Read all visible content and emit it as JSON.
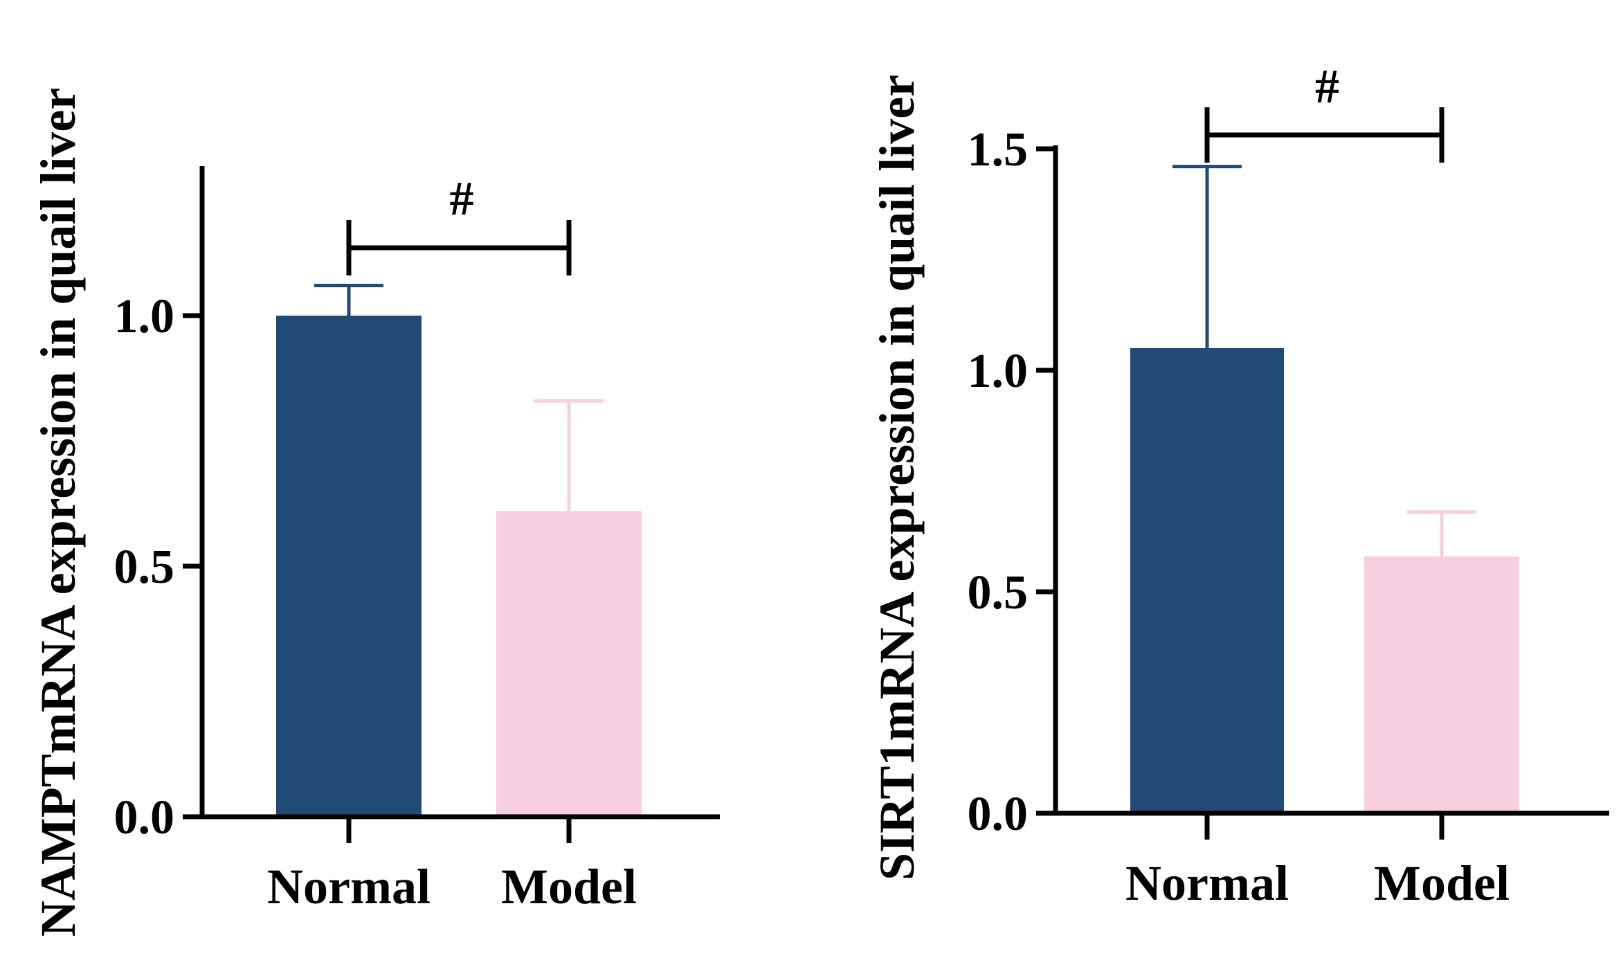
{
  "colors": {
    "normal": "#224A76",
    "model": "#F7CFE0",
    "axis": "#000000"
  },
  "chart_data": [
    {
      "type": "bar",
      "categories": [
        "Normal",
        "Model"
      ],
      "values": [
        1.0,
        0.61
      ],
      "errors": [
        0.06,
        0.22
      ],
      "ylabel": "NAMPTmRNA expression in quail liver",
      "ylim": [
        0,
        1.3
      ],
      "yticks": [
        0.0,
        0.5,
        1.0
      ],
      "tick_labels": [
        "0.0",
        "0.5",
        "1.0"
      ],
      "significance": {
        "symbol": "#",
        "between": [
          "Normal",
          "Model"
        ]
      },
      "error_direction": "up"
    },
    {
      "type": "bar",
      "categories": [
        "Normal",
        "Model"
      ],
      "values": [
        1.05,
        0.58
      ],
      "errors": [
        0.41,
        0.1
      ],
      "ylabel": "SIRT1mRNA expression in quail liver",
      "ylim": [
        0,
        1.5
      ],
      "yticks": [
        0.0,
        0.5,
        1.0,
        1.5
      ],
      "tick_labels": [
        "0.0",
        "0.5",
        "1.0",
        "1.5"
      ],
      "significance": {
        "symbol": "#",
        "between": [
          "Normal",
          "Model"
        ]
      },
      "error_direction": "up"
    }
  ]
}
